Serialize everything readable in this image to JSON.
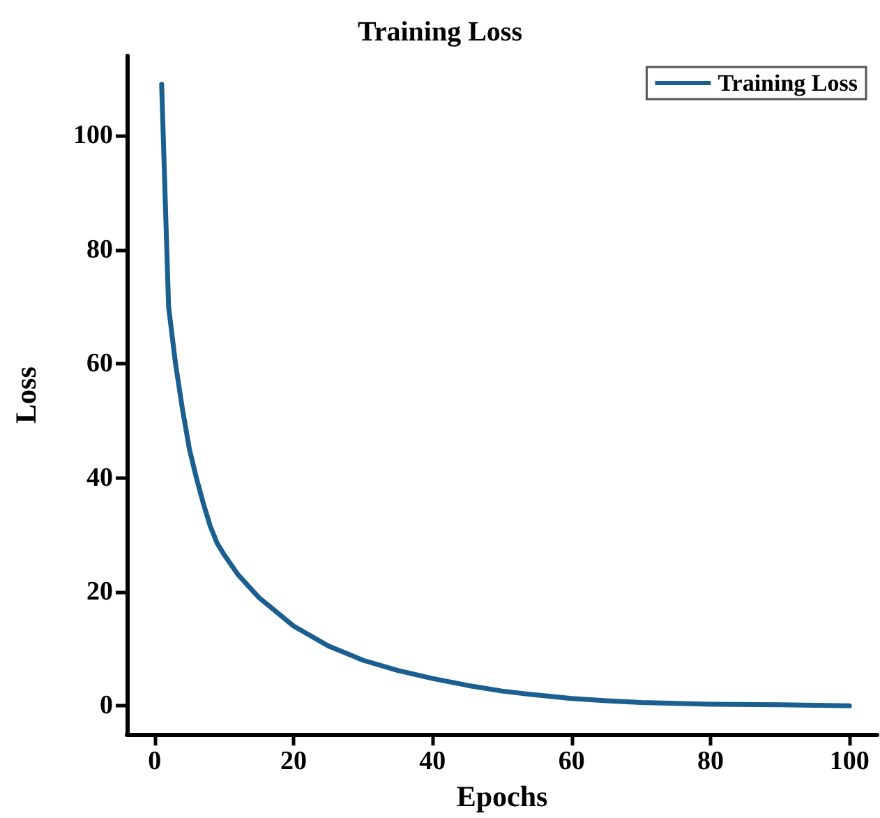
{
  "chart_data": {
    "type": "line",
    "title": "Training Loss",
    "xlabel": "Epochs",
    "ylabel": "Loss",
    "xlim": [
      -4,
      104
    ],
    "xticks": [
      0,
      20,
      40,
      60,
      80,
      100
    ],
    "ylim": [
      -5,
      114
    ],
    "yticks": [
      0,
      20,
      40,
      60,
      80,
      100
    ],
    "grid": false,
    "legend": "top right",
    "marker": "none",
    "line_style": "solid",
    "series": [
      {
        "name": "Training Loss",
        "color": "#1a5f8f",
        "x": [
          1,
          2,
          3,
          4,
          5,
          6,
          7,
          8,
          9,
          10,
          12,
          15,
          20,
          25,
          30,
          35,
          40,
          45,
          50,
          55,
          60,
          65,
          70,
          80,
          90,
          100
        ],
        "values": [
          109,
          70,
          60,
          52,
          45,
          40,
          35.5,
          31.5,
          28.5,
          26.5,
          23,
          19,
          14,
          10.5,
          8,
          6.2,
          4.8,
          3.6,
          2.6,
          1.9,
          1.3,
          0.9,
          0.6,
          0.3,
          0.2,
          0
        ]
      }
    ]
  }
}
